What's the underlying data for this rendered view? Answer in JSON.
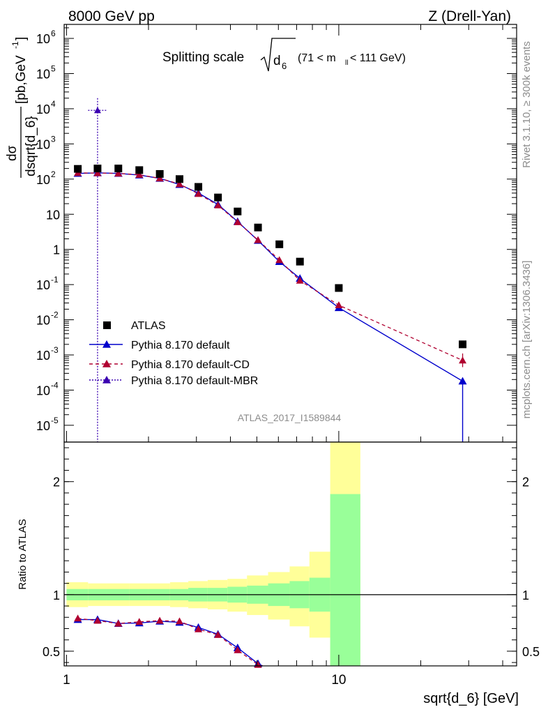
{
  "header": {
    "left": "8000 GeV pp",
    "right": "Z (Drell-Yan)"
  },
  "side_labels": {
    "rivet": "Rivet 3.1.10, ≥ 300k events",
    "mcplots": "mcplots.cern.ch [arXiv:1306.3436]"
  },
  "title": {
    "main": "Splitting scale",
    "sqrt_d": "d",
    "sqrt_sub": "6",
    "range_text": "(71 < m",
    "range_sub": "ll",
    "range_tail": " < 111 GeV)"
  },
  "analysis_tag": "ATLAS_2017_I1589844",
  "y_label": {
    "numerator": "dσ",
    "denominator": "dsqrt{d_6}",
    "units": "[pb,GeV",
    "units_exp": "-1",
    "units_close": "]"
  },
  "ratio_label": "Ratio to ATLAS",
  "x_label": "sqrt{d_6} [GeV]",
  "legend": [
    {
      "name": "ATLAS",
      "color": "#000000",
      "style": "square"
    },
    {
      "name": "Pythia 8.170 default",
      "color": "#0000cc",
      "style": "solid"
    },
    {
      "name": "Pythia 8.170 default-CD",
      "color": "#b00030",
      "style": "dashed"
    },
    {
      "name": "Pythia 8.170 default-MBR",
      "color": "#3a00b0",
      "style": "dotted"
    }
  ],
  "chart_data": {
    "type": "scatter",
    "x_scale": "log",
    "y_scale": "log",
    "xlim": [
      0.98,
      45
    ],
    "ylim": [
      3.33e-06,
      2500000
    ],
    "xlabel": "sqrt{d_6} [GeV]",
    "ylabel": "dσ/dsqrt{d_6} [pb,GeV^-1]",
    "x_ticks": [
      {
        "v": 1,
        "label": "1"
      },
      {
        "v": 10,
        "label": "10"
      }
    ],
    "y_ticks": [
      {
        "v": 1e-05,
        "m": "10",
        "e": "-5"
      },
      {
        "v": 0.0001,
        "m": "10",
        "e": "-4"
      },
      {
        "v": 0.001,
        "m": "10",
        "e": "-3"
      },
      {
        "v": 0.01,
        "m": "10",
        "e": "-2"
      },
      {
        "v": 0.1,
        "m": "10",
        "e": "-1"
      },
      {
        "v": 1,
        "m": "1",
        "e": ""
      },
      {
        "v": 10,
        "m": "10",
        "e": ""
      },
      {
        "v": 100,
        "m": "10",
        "e": "2"
      },
      {
        "v": 1000,
        "m": "10",
        "e": "3"
      },
      {
        "v": 10000,
        "m": "10",
        "e": "4"
      },
      {
        "v": 100000,
        "m": "10",
        "e": "5"
      },
      {
        "v": 1000000,
        "m": "10",
        "e": "6"
      }
    ],
    "bin_edges": [
      1.0,
      1.2,
      1.4,
      1.7,
      2.0,
      2.4,
      2.8,
      3.3,
      3.9,
      4.6,
      5.5,
      6.6,
      7.8,
      9.3,
      12.0,
      45.0
    ],
    "x": [
      1.1,
      1.3,
      1.55,
      1.85,
      2.2,
      2.6,
      3.05,
      3.6,
      4.25,
      5.05,
      6.05,
      7.2,
      10.0,
      28.5
    ],
    "series": [
      {
        "name": "ATLAS",
        "values": [
          195,
          200,
          200,
          180,
          140,
          100,
          60,
          30,
          12,
          4.2,
          1.4,
          0.45,
          0.08,
          0.002
        ]
      },
      {
        "name": "Pythia 8.170 default",
        "values": [
          145,
          150,
          145,
          130,
          105,
          70,
          40,
          19,
          6.2,
          1.8,
          0.45,
          0.15,
          0.022,
          0.00018
        ]
      },
      {
        "name": "Pythia 8.170 default-CD",
        "values": [
          150,
          148,
          145,
          133,
          105,
          72,
          38,
          18,
          6.0,
          1.85,
          0.5,
          0.13,
          0.026,
          0.0007
        ]
      },
      {
        "name": "Pythia 8.170 default-MBR",
        "x": [
          1.3
        ],
        "values": [
          9000
        ]
      }
    ],
    "ratio": {
      "ylim": [
        0.37,
        2.35
      ],
      "ylabel": "Ratio to ATLAS",
      "y_ticks": [
        {
          "v": 0.5,
          "label": "0.5"
        },
        {
          "v": 1,
          "label": "1"
        },
        {
          "v": 2,
          "label": "2"
        }
      ],
      "band_yellow_upper": [
        1.11,
        1.1,
        1.1,
        1.1,
        1.1,
        1.11,
        1.12,
        1.13,
        1.14,
        1.17,
        1.2,
        1.25,
        1.38,
        2.5
      ],
      "band_yellow_lower": [
        0.89,
        0.9,
        0.9,
        0.9,
        0.9,
        0.89,
        0.88,
        0.87,
        0.85,
        0.82,
        0.78,
        0.72,
        0.62,
        0.37
      ],
      "band_green_upper": [
        1.05,
        1.05,
        1.05,
        1.05,
        1.05,
        1.05,
        1.06,
        1.06,
        1.07,
        1.08,
        1.1,
        1.12,
        1.15,
        1.89
      ],
      "band_green_lower": [
        0.95,
        0.95,
        0.95,
        0.95,
        0.95,
        0.95,
        0.94,
        0.94,
        0.93,
        0.92,
        0.9,
        0.88,
        0.85,
        0.37
      ],
      "series": [
        {
          "name": "Pythia 8.170 default",
          "values": [
            0.78,
            0.78,
            0.745,
            0.75,
            0.765,
            0.755,
            0.71,
            0.65,
            0.53,
            0.39
          ]
        },
        {
          "name": "Pythia 8.170 default-CD",
          "values": [
            0.79,
            0.77,
            0.745,
            0.76,
            0.77,
            0.765,
            0.695,
            0.645,
            0.51,
            0.38
          ]
        }
      ]
    }
  }
}
